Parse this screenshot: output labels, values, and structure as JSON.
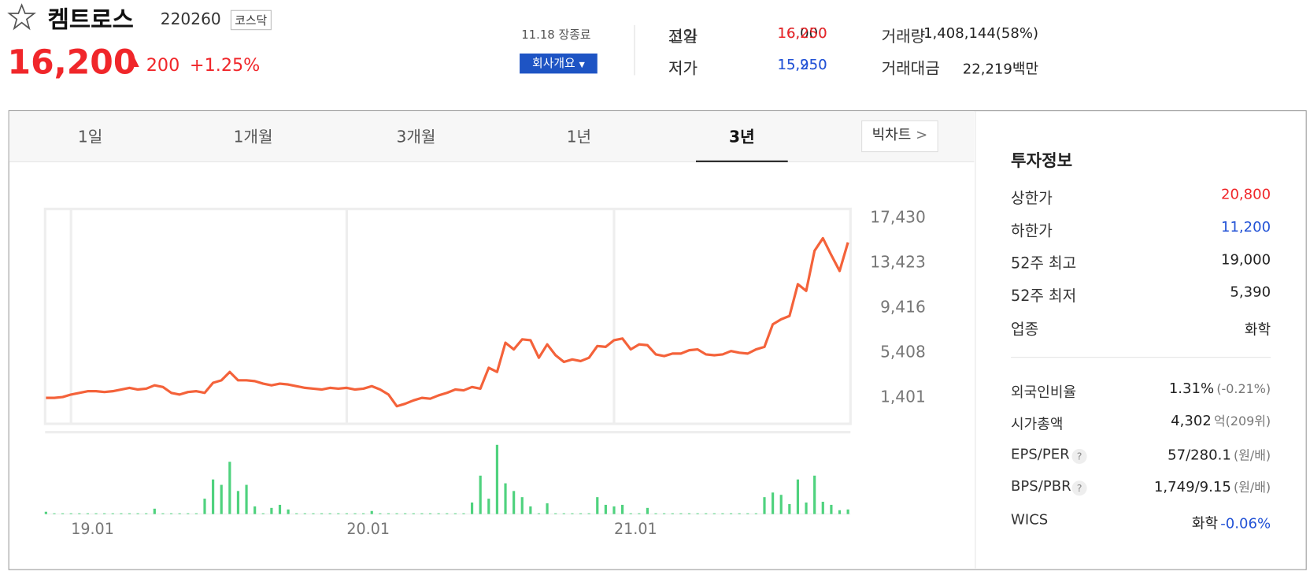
{
  "header": {
    "name": "켐트로스",
    "code": "220260",
    "market": "코스닥",
    "price": "16,200",
    "change": "200",
    "change_pct": "+1.25%",
    "status": "11.18 장종료",
    "company_button": "회사개요"
  },
  "quote": [
    {
      "label": "전일",
      "value": "16,000"
    },
    {
      "label": "시가",
      "value": "15,950",
      "color": "#2353d6"
    },
    {
      "label": "고가",
      "value": "16,250",
      "color": "#f0262a"
    },
    {
      "label": "저가",
      "value": "15,250",
      "color": "#2353d6"
    },
    {
      "label": "거래량",
      "value": "1,408,144(58%)"
    },
    {
      "label": "거래대금",
      "value": "22,219백만"
    }
  ],
  "tabs": {
    "items": [
      "1일",
      "1개월",
      "3개월",
      "1년",
      "3년"
    ],
    "active": 4,
    "big_chart": "빅차트"
  },
  "info": {
    "title": "투자정보",
    "rows": [
      {
        "label": "상한가",
        "value": "20,800",
        "color": "#f0262a"
      },
      {
        "label": "하한가",
        "value": "11,200",
        "color": "#2353d6"
      },
      {
        "label": "52주 최고",
        "value": "19,000"
      },
      {
        "label": "52주 최저",
        "value": "5,390"
      },
      {
        "label": "업종",
        "value": "화학"
      }
    ],
    "rows2": [
      {
        "label": "외국인비율",
        "value": "1.31%",
        "extra": "(-0.21%)"
      },
      {
        "label": "시가총액",
        "value": "4,302",
        "extra": "억(209위)"
      },
      {
        "label": "EPS/PER",
        "help": "?",
        "value": "57/280.1",
        "extra": "(원/배)"
      },
      {
        "label": "BPS/PBR",
        "help": "?",
        "value": "1,749/9.15",
        "extra": "(원/배)"
      },
      {
        "label": "WICS",
        "value": "화학",
        "extra": "-0.06%",
        "extra_color": "#2353d6"
      }
    ]
  },
  "chart_data": {
    "type": "line",
    "color": "#f4623a",
    "volume_color": "#4fd27e",
    "categories": [
      null,
      null,
      null,
      "19.01",
      null,
      null,
      null,
      null,
      null,
      null,
      null,
      null,
      null,
      null,
      null,
      null,
      null,
      null,
      null,
      null,
      null,
      null,
      null,
      null,
      null,
      null,
      null,
      null,
      null,
      null,
      null,
      null,
      null,
      null,
      null,
      null,
      "20.01",
      null,
      null,
      null,
      null,
      null,
      null,
      null,
      null,
      null,
      null,
      null,
      null,
      null,
      null,
      null,
      null,
      null,
      null,
      null,
      null,
      null,
      null,
      null,
      null,
      null,
      null,
      null,
      null,
      null,
      null,
      null,
      "21.01",
      null,
      null,
      null,
      null,
      null,
      null,
      null,
      null,
      null,
      null,
      null,
      null,
      null,
      null,
      null,
      null,
      null,
      null,
      null,
      null,
      null,
      null,
      null,
      null,
      null,
      null,
      null,
      null
    ],
    "values": [
      1252,
      1252,
      1326,
      1550,
      1699,
      1848,
      1848,
      1774,
      1848,
      1997,
      2147,
      1997,
      2072,
      2370,
      2221,
      1699,
      1550,
      1774,
      1848,
      1699,
      2594,
      2817,
      3563,
      2817,
      2817,
      2743,
      2519,
      2370,
      2519,
      2445,
      2296,
      2147,
      2072,
      1997,
      2147,
      2072,
      2147,
      1997,
      2072,
      2296,
      1997,
      1550,
      506,
      730,
      1028,
      1252,
      1177,
      1476,
      1699,
      1997,
      1923,
      2221,
      2072,
      3936,
      3563,
      6172,
      5576,
      6470,
      6396,
      4830,
      6023,
      5054,
      4458,
      4681,
      4532,
      4830,
      5874,
      5799,
      6396,
      6545,
      5576,
      6023,
      5949,
      5129,
      4980,
      5203,
      5203,
      5501,
      5576,
      5129,
      5054,
      5129,
      5427,
      5278,
      5203,
      5576,
      5799,
      7812,
      8260,
      8558,
      11391,
      10794,
      14373,
      15491,
      13990,
      12574,
      15118
    ],
    "volume": [
      3,
      1,
      1,
      1,
      1,
      1,
      1,
      1,
      1,
      1,
      1,
      1,
      1,
      7,
      1,
      1,
      1,
      1,
      1,
      20,
      45,
      38,
      68,
      30,
      38,
      10,
      1,
      8,
      12,
      6,
      1,
      1,
      1,
      1,
      1,
      1,
      1,
      1,
      1,
      4,
      1,
      1,
      1,
      1,
      1,
      1,
      1,
      1,
      1,
      1,
      1,
      15,
      50,
      20,
      90,
      40,
      30,
      22,
      10,
      1,
      14,
      1,
      1,
      1,
      1,
      1,
      22,
      12,
      10,
      12,
      1,
      1,
      8,
      1,
      1,
      1,
      1,
      1,
      1,
      1,
      1,
      1,
      1,
      1,
      1,
      1,
      22,
      28,
      25,
      13,
      45,
      15,
      50,
      16,
      12,
      5,
      6
    ],
    "vlim": [
      0,
      100
    ],
    "ylim": [
      -1060,
      18100
    ],
    "yticks": [
      {
        "value": 17430,
        "label": "17,430"
      },
      {
        "value": 13423,
        "label": "13,423"
      },
      {
        "value": 9416,
        "label": "9,416"
      },
      {
        "value": 5408,
        "label": "5,408"
      },
      {
        "value": 1401,
        "label": "1,401"
      }
    ],
    "grid": true
  }
}
